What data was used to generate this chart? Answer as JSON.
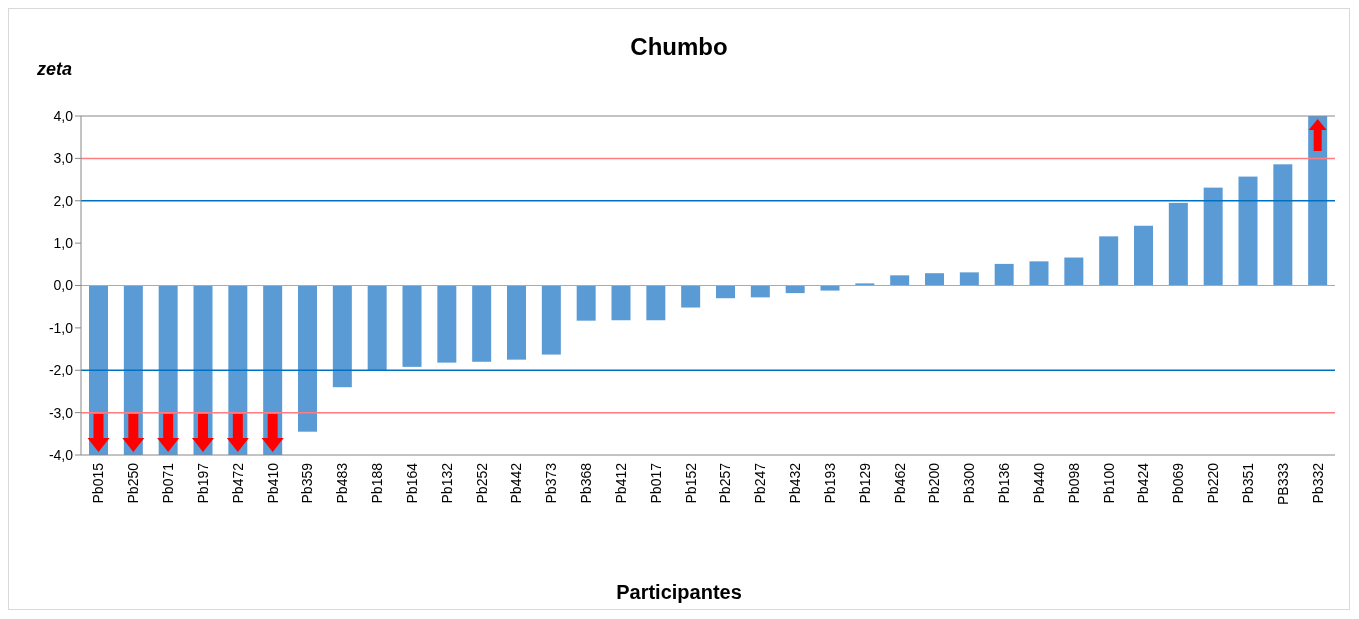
{
  "chart_data": {
    "type": "bar",
    "title": "Chumbo",
    "ylabel": "zeta",
    "xlabel": "Participantes",
    "categories": [
      "Pb015",
      "Pb250",
      "Pb071",
      "Pb197",
      "Pb472",
      "Pb410",
      "Pb359",
      "Pb483",
      "Pb188",
      "Pb164",
      "Pb132",
      "Pb252",
      "Pb442",
      "Pb373",
      "Pb368",
      "Pb412",
      "Pb017",
      "Pb152",
      "Pb257",
      "Pb247",
      "Pb432",
      "Pb193",
      "Pb129",
      "Pb462",
      "Pb200",
      "Pb300",
      "Pb136",
      "Pb440",
      "Pb098",
      "Pb100",
      "Pb424",
      "Pb069",
      "Pb220",
      "Pb351",
      "PB333",
      "Pb332"
    ],
    "values": [
      -4.0,
      -4.0,
      -4.0,
      -4.0,
      -4.0,
      -4.0,
      -3.45,
      -2.4,
      -2.0,
      -1.92,
      -1.82,
      -1.8,
      -1.75,
      -1.63,
      -0.83,
      -0.82,
      -0.82,
      -0.52,
      -0.3,
      -0.28,
      -0.18,
      -0.12,
      0.05,
      0.24,
      0.29,
      0.31,
      0.51,
      0.57,
      0.66,
      1.16,
      1.41,
      1.95,
      2.31,
      2.57,
      2.86,
      4.0
    ],
    "color": "#5b9bd5",
    "ylim": [
      -4,
      4
    ],
    "yticks": [
      {
        "value": -4,
        "label": "-4,0"
      },
      {
        "value": -3,
        "label": "-3,0"
      },
      {
        "value": -2,
        "label": "-2,0"
      },
      {
        "value": -1,
        "label": "-1,0"
      },
      {
        "value": 0,
        "label": "0,0"
      },
      {
        "value": 1,
        "label": "1,0"
      },
      {
        "value": 2,
        "label": "2,0"
      },
      {
        "value": 3,
        "label": "3,0"
      },
      {
        "value": 4,
        "label": "4,0"
      }
    ],
    "ref_lines": [
      {
        "axis": "y",
        "value": 3,
        "color": "#ff7c80"
      },
      {
        "axis": "y",
        "value": -3,
        "color": "#ff7c80"
      },
      {
        "axis": "y",
        "value": 2,
        "color": "#0070c0"
      },
      {
        "axis": "y",
        "value": -2,
        "color": "#0070c0"
      }
    ],
    "grid": false,
    "legend": false
  }
}
